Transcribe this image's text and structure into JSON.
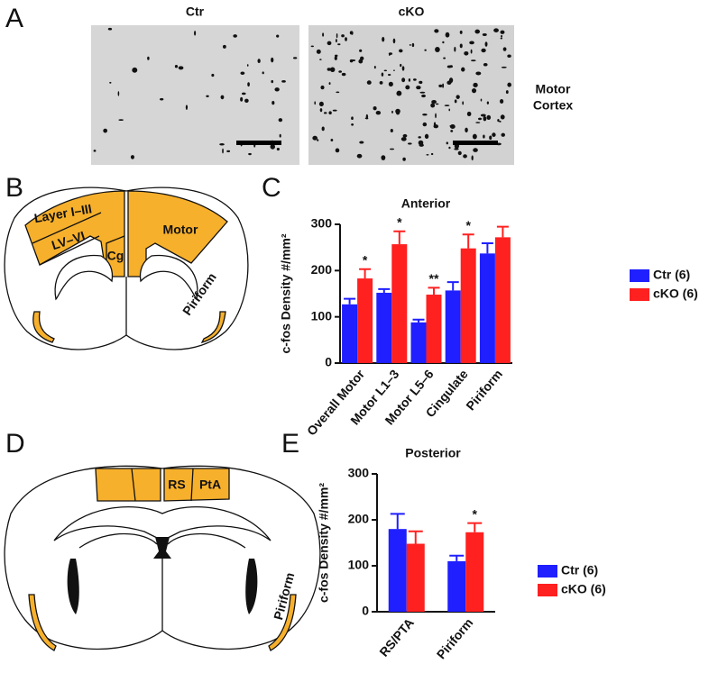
{
  "figure": {
    "panels": [
      "A",
      "B",
      "C",
      "D",
      "E"
    ],
    "micrographs": {
      "titles": [
        "Ctr",
        "cKO"
      ],
      "region": [
        "Motor",
        "Cortex"
      ]
    },
    "diagram_b": {
      "labels": [
        "Layer I–III",
        "LV–VI",
        "Cg",
        "Motor",
        "Piriform"
      ]
    },
    "diagram_d": {
      "labels": [
        "RS",
        "PtA",
        "Piriform"
      ]
    }
  },
  "chart_data": [
    {
      "type": "bar",
      "title": "Anterior",
      "ylabel": "c-fos Density #/mm²",
      "categories": [
        "Overall Motor",
        "Motor L1–3",
        "Motor L5–6",
        "Cingulate",
        "Piriform"
      ],
      "series": [
        {
          "name": "Ctr (6)",
          "color": "#1f1fff",
          "values": [
            127,
            152,
            88,
            157,
            237
          ],
          "errors": [
            12,
            8,
            6,
            18,
            22
          ]
        },
        {
          "name": "cKO (6)",
          "color": "#ff2020",
          "values": [
            183,
            257,
            148,
            248,
            272
          ],
          "errors": [
            20,
            28,
            15,
            30,
            23
          ]
        }
      ],
      "annotations": [
        "*",
        "*",
        "**",
        "*",
        null
      ],
      "ylim": [
        0,
        300
      ],
      "yticks": [
        0,
        100,
        200,
        300
      ],
      "legend": "right"
    },
    {
      "type": "bar",
      "title": "Posterior",
      "ylabel": "c-fos Density #/mm²",
      "categories": [
        "RS/PTA",
        "Piriform"
      ],
      "series": [
        {
          "name": "Ctr (6)",
          "color": "#1f1fff",
          "values": [
            180,
            110
          ],
          "errors": [
            33,
            12
          ]
        },
        {
          "name": "cKO (6)",
          "color": "#ff2020",
          "values": [
            148,
            173
          ],
          "errors": [
            27,
            20
          ]
        }
      ],
      "annotations": [
        null,
        "*"
      ],
      "ylim": [
        0,
        300
      ],
      "yticks": [
        0,
        100,
        200,
        300
      ],
      "legend": "right"
    }
  ]
}
